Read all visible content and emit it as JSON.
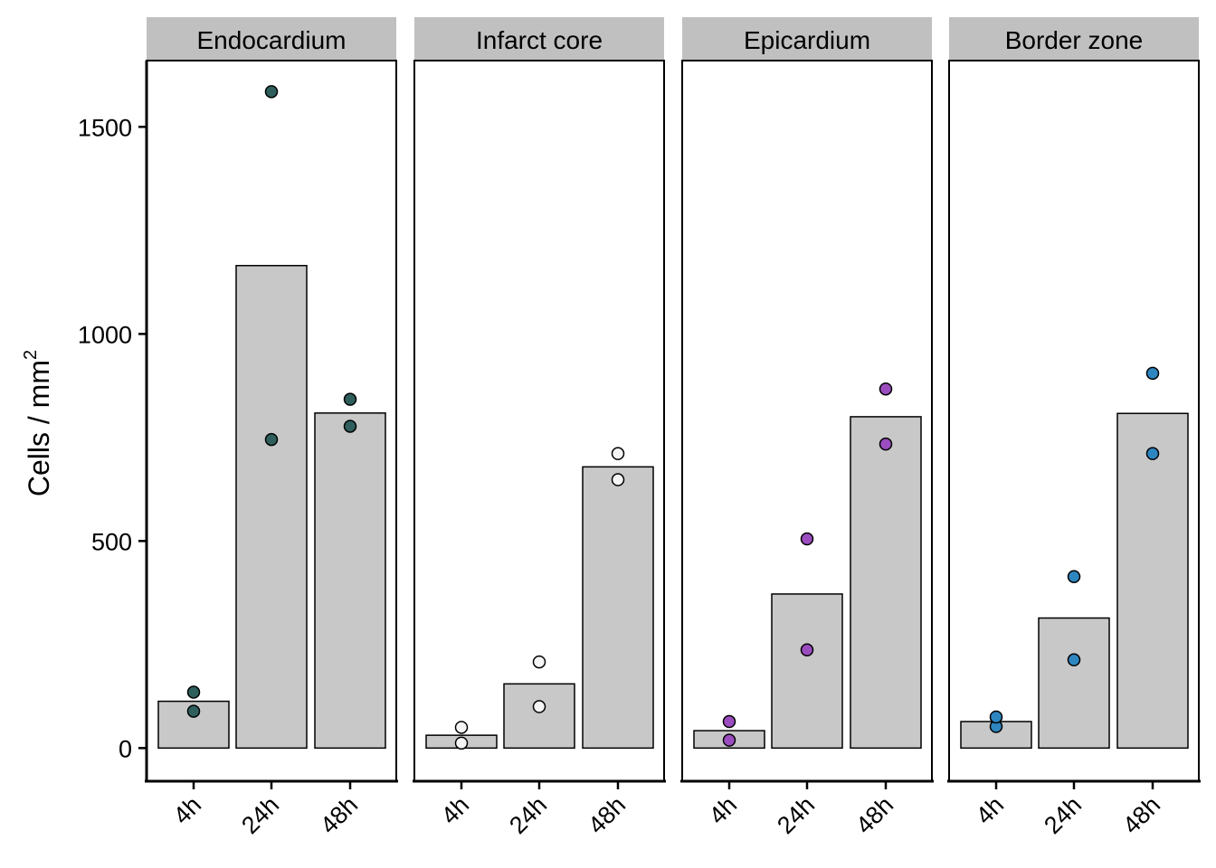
{
  "chart_data": {
    "type": "bar",
    "ylabel": "Cells / mm",
    "ylabel_superscript": "2",
    "ylim": [
      -80,
      1660
    ],
    "yticks": [
      0,
      500,
      1000,
      1500
    ],
    "ytick_labels": [
      "0",
      "500",
      "1000",
      "1500"
    ],
    "categories": [
      "4h",
      "24h",
      "48h"
    ],
    "grid": false,
    "legend": "none",
    "bar_color": "#c8c8c8",
    "strip_color": "#c0c0c0",
    "panels": [
      {
        "title": "Endocardium",
        "point_color": "#2e5f5c",
        "means": [
          113,
          1165,
          809
        ],
        "points": [
          [
            89,
            135
          ],
          [
            745,
            1585
          ],
          [
            777,
            842
          ]
        ]
      },
      {
        "title": "Infarct core",
        "point_color": "#f5f5f5",
        "means": [
          31,
          155,
          679
        ],
        "points": [
          [
            12,
            50
          ],
          [
            100,
            208
          ],
          [
            648,
            711
          ]
        ]
      },
      {
        "title": "Epicardium",
        "point_color": "#9b4dbf",
        "means": [
          42,
          372,
          800
        ],
        "points": [
          [
            19,
            64
          ],
          [
            237,
            505
          ],
          [
            734,
            867
          ]
        ]
      },
      {
        "title": "Border zone",
        "point_color": "#2e86c1",
        "means": [
          64,
          314,
          808
        ],
        "points": [
          [
            52,
            75
          ],
          [
            213,
            414
          ],
          [
            711,
            905
          ]
        ]
      }
    ]
  }
}
